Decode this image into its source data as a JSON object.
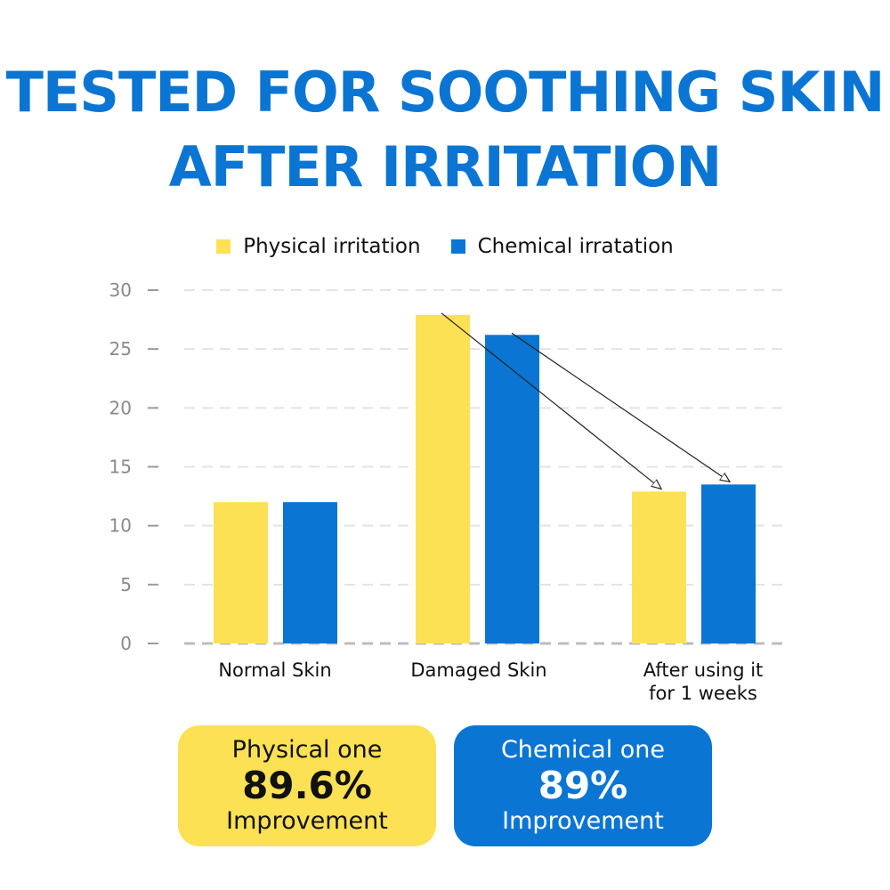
{
  "title_line1": "TESTED FOR SOOTHING SKIN",
  "title_line2": "AFTER IRRITATION",
  "colors": {
    "title": "#0b75d4",
    "physical": "#fde154",
    "chemical": "#0b75d4"
  },
  "chart_data": {
    "type": "bar",
    "categories": [
      [
        "Normal Skin"
      ],
      [
        "Damaged Skin"
      ],
      [
        "After using it",
        "for 1 weeks"
      ]
    ],
    "series": [
      {
        "name": "Physical irritation",
        "values": [
          12,
          27.9,
          12.9
        ],
        "color": "#fde154"
      },
      {
        "name": "Chemical irratation",
        "values": [
          12,
          26.2,
          13.5
        ],
        "color": "#0b75d4"
      }
    ],
    "yticks": [
      0,
      5,
      10,
      15,
      20,
      25,
      30
    ],
    "ylim": [
      0,
      30
    ],
    "grid": true,
    "gridStyle": "dashed",
    "legend": "top-center",
    "annotations": "arrows from Damaged Skin bars to After using it bars"
  },
  "cards": {
    "physical": {
      "line1": "Physical one",
      "value": "89.6%",
      "line3": "Improvement"
    },
    "chemical": {
      "line1": "Chemical one",
      "value": "89%",
      "line3": "Improvement"
    }
  }
}
